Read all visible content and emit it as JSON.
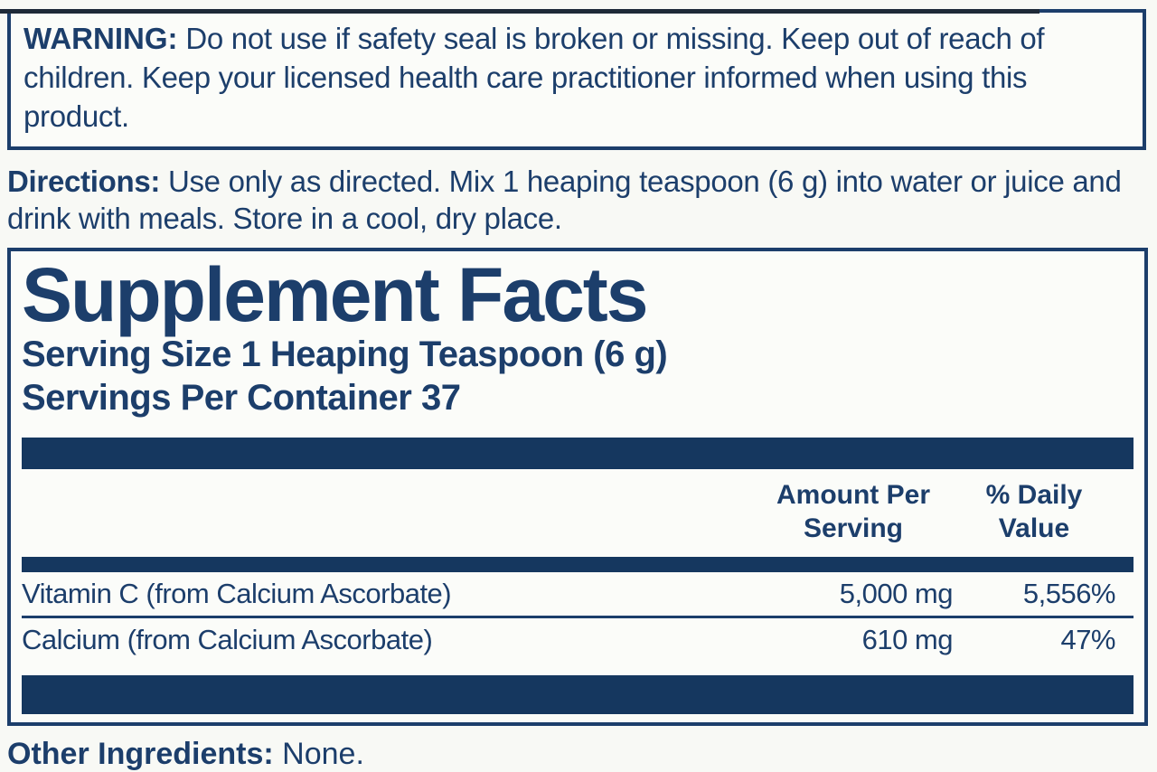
{
  "colors": {
    "navy_text": "#1c3e6b",
    "bar_navy": "#15375f",
    "background": "#f8f9f5"
  },
  "warning": {
    "label": "WARNING:",
    "text": "Do not use if safety seal is broken or missing. Keep out of reach of children. Keep your licensed health care practitioner informed when using this product."
  },
  "directions": {
    "label": "Directions:",
    "text": "Use only as directed. Mix 1 heaping teaspoon (6 g) into water or juice and drink with meals. Store in a cool, dry place."
  },
  "supplement_facts": {
    "title": "Supplement Facts",
    "serving_size": "Serving Size 1 Heaping Teaspoon (6 g)",
    "servings_per_container": "Servings Per Container 37",
    "columns": {
      "amount_header": "Amount Per Serving",
      "dv_header": "% Daily Value"
    },
    "rows": [
      {
        "name": "Vitamin C (from Calcium Ascorbate)",
        "amount": "5,000 mg",
        "daily_value": "5,556%"
      },
      {
        "name": "Calcium (from Calcium Ascorbate)",
        "amount": "610 mg",
        "daily_value": "47%"
      }
    ]
  },
  "other_ingredients": {
    "label": "Other Ingredients:",
    "text": "None."
  }
}
